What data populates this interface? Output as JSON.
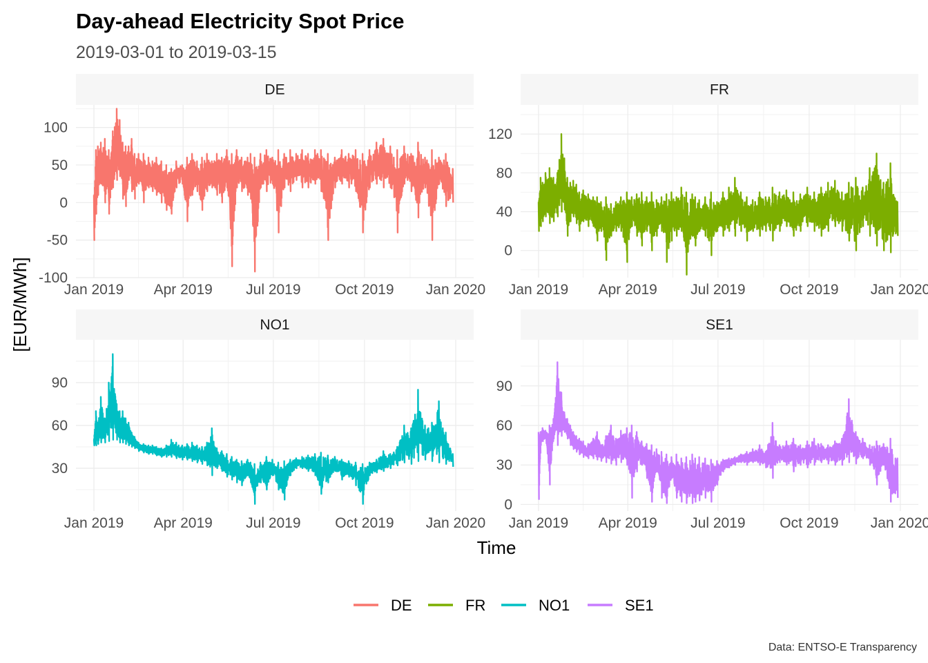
{
  "chart_data": {
    "type": "line",
    "title": "Day-ahead Electricity Spot Price",
    "subtitle": "2019-03-01 to 2019-03-15",
    "xlabel": "Time",
    "ylabel": "[EUR/MWh]",
    "caption": "Data: ENTSO-E Transparency",
    "legend_position": "bottom",
    "grid": true,
    "x_ticks": [
      "Jan 2019",
      "Apr 2019",
      "Jul 2019",
      "Oct 2019",
      "Jan 2020"
    ],
    "x_range": [
      "2019-01-01",
      "2020-01-01"
    ],
    "panels": [
      {
        "name": "DE",
        "color": "#F8766D",
        "ylim": [
          -100,
          130
        ],
        "y_ticks": [
          -100,
          -50,
          0,
          50,
          100
        ],
        "series": {
          "dates": [
            "2019-01-01",
            "2019-01-03",
            "2019-01-05",
            "2019-01-08",
            "2019-01-12",
            "2019-01-16",
            "2019-01-20",
            "2019-01-24",
            "2019-01-27",
            "2019-01-30",
            "2019-02-02",
            "2019-02-05",
            "2019-02-08",
            "2019-02-11",
            "2019-02-15",
            "2019-02-20",
            "2019-02-25",
            "2019-03-01",
            "2019-03-05",
            "2019-03-10",
            "2019-03-15",
            "2019-03-20",
            "2019-03-25",
            "2019-03-31",
            "2019-04-05",
            "2019-04-10",
            "2019-04-15",
            "2019-04-20",
            "2019-04-25",
            "2019-04-30",
            "2019-05-05",
            "2019-05-10",
            "2019-05-15",
            "2019-05-20",
            "2019-05-25",
            "2019-05-30",
            "2019-06-05",
            "2019-06-08",
            "2019-06-12",
            "2019-06-18",
            "2019-06-24",
            "2019-06-30",
            "2019-07-06",
            "2019-07-12",
            "2019-07-18",
            "2019-07-24",
            "2019-07-30",
            "2019-08-05",
            "2019-08-12",
            "2019-08-18",
            "2019-08-25",
            "2019-09-01",
            "2019-09-08",
            "2019-09-15",
            "2019-09-22",
            "2019-09-29",
            "2019-10-06",
            "2019-10-13",
            "2019-10-20",
            "2019-10-27",
            "2019-11-03",
            "2019-11-10",
            "2019-11-17",
            "2019-11-24",
            "2019-12-01",
            "2019-12-08",
            "2019-12-15",
            "2019-12-22",
            "2019-12-29"
          ],
          "low": [
            -50,
            -15,
            10,
            25,
            0,
            -15,
            20,
            30,
            35,
            5,
            -5,
            30,
            15,
            5,
            25,
            0,
            20,
            15,
            10,
            0,
            -10,
            -15,
            20,
            25,
            -25,
            10,
            15,
            -10,
            15,
            20,
            10,
            0,
            20,
            -85,
            20,
            15,
            10,
            5,
            -92,
            20,
            15,
            25,
            -40,
            20,
            15,
            30,
            20,
            20,
            25,
            15,
            -50,
            20,
            25,
            20,
            15,
            -40,
            20,
            25,
            20,
            20,
            -40,
            25,
            15,
            -20,
            20,
            -50,
            25,
            -5,
            0
          ],
          "high": [
            10,
            70,
            75,
            80,
            85,
            70,
            95,
            125,
            110,
            80,
            75,
            75,
            85,
            65,
            65,
            65,
            60,
            55,
            60,
            55,
            50,
            45,
            55,
            50,
            60,
            65,
            55,
            60,
            65,
            55,
            65,
            60,
            70,
            65,
            70,
            60,
            60,
            65,
            60,
            65,
            70,
            60,
            70,
            65,
            70,
            65,
            70,
            65,
            70,
            70,
            65,
            60,
            70,
            65,
            70,
            65,
            70,
            80,
            85,
            75,
            70,
            75,
            65,
            80,
            60,
            70,
            60,
            65,
            45
          ]
        }
      },
      {
        "name": "FR",
        "color": "#7CAE00",
        "ylim": [
          -28,
          150
        ],
        "y_ticks": [
          0,
          40,
          80,
          120
        ],
        "series": {
          "dates": [
            "2019-01-01",
            "2019-01-03",
            "2019-01-05",
            "2019-01-08",
            "2019-01-12",
            "2019-01-16",
            "2019-01-20",
            "2019-01-24",
            "2019-01-27",
            "2019-01-30",
            "2019-02-02",
            "2019-02-05",
            "2019-02-08",
            "2019-02-11",
            "2019-02-15",
            "2019-02-20",
            "2019-02-25",
            "2019-03-01",
            "2019-03-05",
            "2019-03-10",
            "2019-03-15",
            "2019-03-20",
            "2019-03-25",
            "2019-03-31",
            "2019-04-05",
            "2019-04-10",
            "2019-04-15",
            "2019-04-20",
            "2019-04-25",
            "2019-04-30",
            "2019-05-05",
            "2019-05-10",
            "2019-05-15",
            "2019-05-20",
            "2019-05-25",
            "2019-05-30",
            "2019-06-05",
            "2019-06-08",
            "2019-06-12",
            "2019-06-18",
            "2019-06-24",
            "2019-06-30",
            "2019-07-06",
            "2019-07-12",
            "2019-07-18",
            "2019-07-24",
            "2019-07-30",
            "2019-08-05",
            "2019-08-12",
            "2019-08-18",
            "2019-08-25",
            "2019-09-01",
            "2019-09-08",
            "2019-09-15",
            "2019-09-22",
            "2019-09-29",
            "2019-10-06",
            "2019-10-13",
            "2019-10-20",
            "2019-10-27",
            "2019-11-03",
            "2019-11-10",
            "2019-11-17",
            "2019-11-24",
            "2019-12-01",
            "2019-12-08",
            "2019-12-15",
            "2019-12-22",
            "2019-12-29"
          ],
          "low": [
            20,
            25,
            30,
            35,
            28,
            30,
            35,
            40,
            42,
            15,
            30,
            35,
            28,
            20,
            30,
            25,
            25,
            10,
            20,
            -10,
            15,
            20,
            20,
            -12,
            25,
            15,
            5,
            20,
            0,
            15,
            20,
            -12,
            10,
            15,
            20,
            -25,
            15,
            5,
            20,
            15,
            -5,
            20,
            15,
            20,
            15,
            20,
            10,
            20,
            15,
            20,
            10,
            20,
            25,
            15,
            20,
            25,
            20,
            15,
            20,
            25,
            20,
            10,
            0,
            25,
            15,
            5,
            0,
            -2,
            15
          ],
          "high": [
            50,
            75,
            70,
            80,
            85,
            75,
            80,
            120,
            95,
            75,
            70,
            72,
            68,
            60,
            62,
            58,
            55,
            55,
            50,
            55,
            48,
            50,
            55,
            60,
            55,
            58,
            60,
            55,
            60,
            52,
            55,
            58,
            60,
            55,
            65,
            60,
            58,
            55,
            52,
            55,
            60,
            50,
            60,
            65,
            75,
            60,
            55,
            52,
            60,
            55,
            65,
            60,
            62,
            60,
            58,
            65,
            60,
            65,
            70,
            72,
            60,
            70,
            75,
            65,
            85,
            100,
            70,
            90,
            50
          ]
        }
      },
      {
        "name": "NO1",
        "color": "#00BFC4",
        "ylim": [
          0,
          120
        ],
        "y_ticks": [
          30,
          60,
          90
        ],
        "series": {
          "dates": [
            "2019-01-01",
            "2019-01-03",
            "2019-01-05",
            "2019-01-08",
            "2019-01-12",
            "2019-01-16",
            "2019-01-20",
            "2019-01-24",
            "2019-01-27",
            "2019-01-30",
            "2019-02-02",
            "2019-02-05",
            "2019-02-08",
            "2019-02-11",
            "2019-02-15",
            "2019-02-20",
            "2019-02-25",
            "2019-03-01",
            "2019-03-05",
            "2019-03-10",
            "2019-03-15",
            "2019-03-20",
            "2019-03-25",
            "2019-03-31",
            "2019-04-05",
            "2019-04-10",
            "2019-04-15",
            "2019-04-20",
            "2019-04-25",
            "2019-04-30",
            "2019-05-05",
            "2019-05-10",
            "2019-05-15",
            "2019-05-20",
            "2019-05-25",
            "2019-05-30",
            "2019-06-05",
            "2019-06-08",
            "2019-06-12",
            "2019-06-18",
            "2019-06-24",
            "2019-06-30",
            "2019-07-06",
            "2019-07-12",
            "2019-07-18",
            "2019-07-24",
            "2019-07-30",
            "2019-08-05",
            "2019-08-12",
            "2019-08-18",
            "2019-08-25",
            "2019-09-01",
            "2019-09-08",
            "2019-09-15",
            "2019-09-22",
            "2019-09-29",
            "2019-10-06",
            "2019-10-13",
            "2019-10-20",
            "2019-10-27",
            "2019-11-03",
            "2019-11-10",
            "2019-11-17",
            "2019-11-24",
            "2019-12-01",
            "2019-12-08",
            "2019-12-15",
            "2019-12-22",
            "2019-12-29"
          ],
          "low": [
            46,
            46,
            47,
            48,
            48,
            49,
            50,
            50,
            48,
            48,
            47,
            46,
            45,
            44,
            42,
            41,
            40,
            40,
            39,
            38,
            38,
            38,
            37,
            36,
            36,
            35,
            34,
            33,
            32,
            25,
            30,
            28,
            24,
            22,
            20,
            18,
            25,
            20,
            5,
            20,
            15,
            25,
            15,
            8,
            25,
            30,
            30,
            28,
            25,
            12,
            20,
            28,
            22,
            24,
            18,
            5,
            25,
            27,
            28,
            30,
            32,
            34,
            33,
            35,
            36,
            35,
            34,
            33,
            31
          ],
          "high": [
            50,
            70,
            62,
            80,
            65,
            90,
            110,
            75,
            70,
            70,
            65,
            62,
            55,
            52,
            48,
            47,
            46,
            46,
            45,
            44,
            46,
            50,
            48,
            46,
            47,
            48,
            46,
            45,
            48,
            58,
            44,
            42,
            40,
            38,
            36,
            35,
            36,
            34,
            33,
            34,
            38,
            36,
            34,
            35,
            36,
            37,
            38,
            39,
            40,
            41,
            39,
            38,
            36,
            35,
            34,
            33,
            34,
            36,
            42,
            40,
            45,
            60,
            58,
            85,
            60,
            62,
            77,
            55,
            40
          ]
        }
      },
      {
        "name": "SE1",
        "color": "#C77CFF",
        "ylim": [
          -5,
          125
        ],
        "y_ticks": [
          0,
          30,
          60,
          90
        ],
        "series": {
          "dates": [
            "2019-01-01",
            "2019-01-03",
            "2019-01-05",
            "2019-01-08",
            "2019-01-12",
            "2019-01-16",
            "2019-01-20",
            "2019-01-24",
            "2019-01-27",
            "2019-01-30",
            "2019-02-02",
            "2019-02-05",
            "2019-02-08",
            "2019-02-11",
            "2019-02-15",
            "2019-02-20",
            "2019-02-25",
            "2019-03-01",
            "2019-03-05",
            "2019-03-10",
            "2019-03-15",
            "2019-03-20",
            "2019-03-25",
            "2019-03-31",
            "2019-04-05",
            "2019-04-10",
            "2019-04-15",
            "2019-04-20",
            "2019-04-25",
            "2019-04-30",
            "2019-05-05",
            "2019-05-10",
            "2019-05-15",
            "2019-05-20",
            "2019-05-25",
            "2019-05-30",
            "2019-06-05",
            "2019-06-08",
            "2019-06-12",
            "2019-06-18",
            "2019-06-24",
            "2019-06-30",
            "2019-07-06",
            "2019-07-12",
            "2019-07-18",
            "2019-07-24",
            "2019-07-30",
            "2019-08-05",
            "2019-08-12",
            "2019-08-18",
            "2019-08-25",
            "2019-09-01",
            "2019-09-08",
            "2019-09-15",
            "2019-09-22",
            "2019-09-29",
            "2019-10-06",
            "2019-10-13",
            "2019-10-20",
            "2019-10-27",
            "2019-11-03",
            "2019-11-10",
            "2019-11-17",
            "2019-11-24",
            "2019-12-01",
            "2019-12-08",
            "2019-12-15",
            "2019-12-22",
            "2019-12-29"
          ],
          "low": [
            4,
            45,
            48,
            50,
            15,
            50,
            45,
            52,
            55,
            50,
            45,
            42,
            40,
            38,
            36,
            35,
            35,
            34,
            33,
            32,
            31,
            30,
            32,
            30,
            5,
            25,
            30,
            20,
            2,
            25,
            5,
            1,
            20,
            5,
            2,
            1,
            1,
            2,
            3,
            5,
            2,
            15,
            25,
            28,
            30,
            32,
            30,
            32,
            30,
            28,
            20,
            32,
            30,
            25,
            30,
            28,
            30,
            32,
            31,
            30,
            30,
            32,
            31,
            35,
            30,
            15,
            30,
            2,
            5
          ],
          "high": [
            55,
            55,
            58,
            56,
            60,
            65,
            108,
            85,
            70,
            65,
            60,
            55,
            52,
            50,
            48,
            46,
            50,
            55,
            45,
            52,
            60,
            50,
            56,
            58,
            60,
            55,
            48,
            46,
            45,
            42,
            40,
            38,
            36,
            38,
            35,
            36,
            38,
            35,
            36,
            35,
            34,
            33,
            34,
            35,
            36,
            38,
            40,
            42,
            45,
            40,
            62,
            45,
            48,
            50,
            45,
            48,
            50,
            46,
            45,
            48,
            50,
            80,
            55,
            50,
            45,
            48,
            46,
            50,
            35
          ]
        }
      }
    ]
  }
}
